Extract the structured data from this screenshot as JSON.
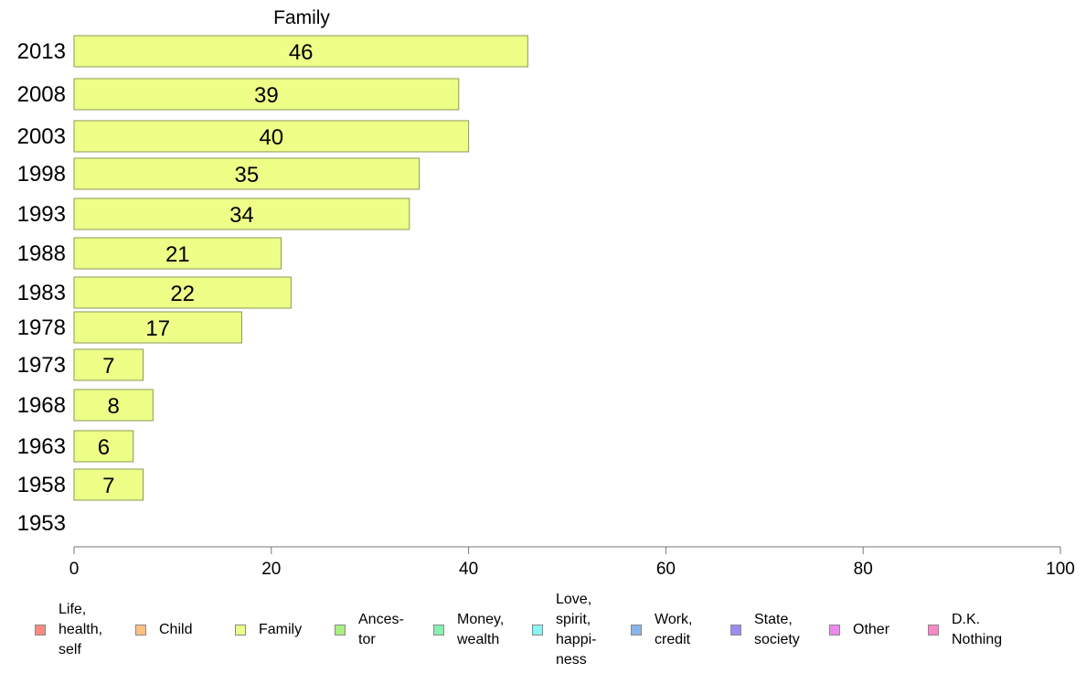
{
  "chart_data": {
    "type": "bar",
    "orientation": "horizontal",
    "title": "Family",
    "categories": [
      "2013",
      "2008",
      "2003",
      "1998",
      "1993",
      "1988",
      "1983",
      "1978",
      "1973",
      "1968",
      "1963",
      "1958",
      "1953"
    ],
    "values": [
      46,
      39,
      40,
      35,
      34,
      21,
      22,
      17,
      7,
      8,
      6,
      7,
      null
    ],
    "data_labels": [
      "46",
      "39",
      "40",
      "35",
      "34",
      "21",
      "22",
      "17",
      "7",
      "8",
      "6",
      "7",
      ""
    ],
    "xlim": [
      0,
      100
    ],
    "x_ticks": [
      0,
      20,
      40,
      60,
      80,
      100
    ],
    "bar_color": "#eeff88",
    "bar_border": "#8a9a55",
    "grid": false,
    "legend_position": "bottom"
  },
  "legend": [
    {
      "label": "Life,\nhealth,\nself",
      "color": "#ff8a80"
    },
    {
      "label": "Child",
      "color": "#ffc080"
    },
    {
      "label": "Family",
      "color": "#eeff88"
    },
    {
      "label": "Ances-\ntor",
      "color": "#a8f080"
    },
    {
      "label": "Money,\nwealth",
      "color": "#88f0b0"
    },
    {
      "label": "Love,\nspirit,\nhappi-\nness",
      "color": "#88f4f4"
    },
    {
      "label": "Work,\ncredit",
      "color": "#88b4ec"
    },
    {
      "label": "State,\nsociety",
      "color": "#9a8cf0"
    },
    {
      "label": "Other",
      "color": "#ee88f0"
    },
    {
      "label": "D.K.\nNothing",
      "color": "#f888c8"
    }
  ]
}
